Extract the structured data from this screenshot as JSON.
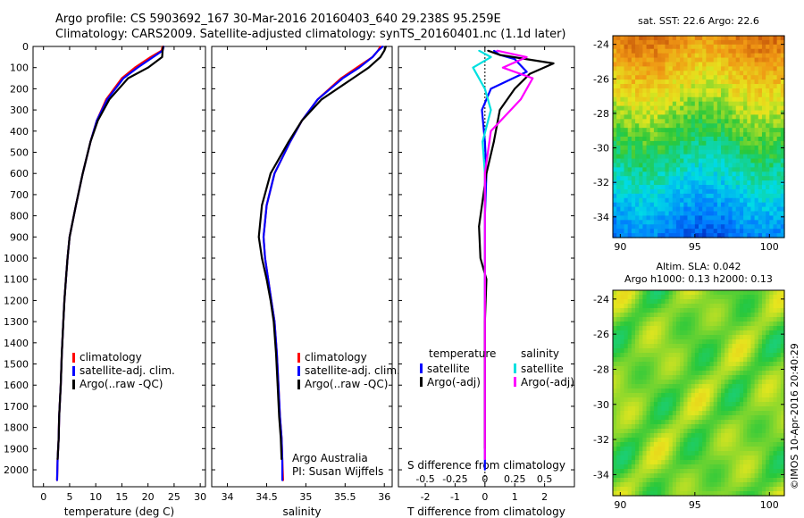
{
  "header": {
    "line1": "Argo profile: CS 5903692_167 30-Mar-2016 20160403_640 29.238S 95.259E",
    "line2": "Climatology: CARS2009. Satellite-adjusted climatology: synTS_20160401.nc (1.1d later)"
  },
  "footer_credit": "©IMOS 10-Apr-2016 20:40:29",
  "chart_data": [
    {
      "type": "line",
      "panel": "temperature",
      "xlabel": "temperature (deg C)",
      "ylabel": "",
      "xlim": [
        -2,
        31
      ],
      "ylim": [
        2080,
        0
      ],
      "xticks": [
        0,
        5,
        10,
        15,
        20,
        25,
        30
      ],
      "yticks": [
        0,
        100,
        200,
        300,
        400,
        500,
        600,
        700,
        800,
        900,
        1000,
        1100,
        1200,
        1300,
        1400,
        1500,
        1600,
        1700,
        1800,
        1900,
        2000
      ],
      "legend": [
        "climatology",
        "satellite-adj. clim.",
        "Argo(..raw -QC)"
      ],
      "legend_colors": [
        "#ff0000",
        "#0000ff",
        "#000000"
      ],
      "series": [
        {
          "name": "climatology",
          "color": "#ff0000",
          "x": [
            22.8,
            22.6,
            20.5,
            17.5,
            15.0,
            12.0,
            10.2,
            9.0,
            7.5,
            6.2,
            5.0,
            4.6,
            4.3,
            4.0,
            3.8,
            3.5,
            3.3,
            3.0,
            2.9,
            2.7,
            2.6
          ],
          "y": [
            0,
            20,
            50,
            100,
            150,
            250,
            350,
            450,
            600,
            750,
            900,
            1000,
            1100,
            1200,
            1300,
            1450,
            1600,
            1750,
            1850,
            1950,
            2050
          ]
        },
        {
          "name": "satellite-adj. clim.",
          "color": "#0000ff",
          "x": [
            23.0,
            22.8,
            21.0,
            18.0,
            15.3,
            12.2,
            10.2,
            9.0,
            7.5,
            6.2,
            5.0,
            4.6,
            4.3,
            4.0,
            3.8,
            3.5,
            3.3,
            3.0,
            2.9,
            2.7,
            2.6
          ],
          "y": [
            0,
            20,
            50,
            100,
            150,
            250,
            350,
            450,
            600,
            750,
            900,
            1000,
            1100,
            1200,
            1300,
            1450,
            1600,
            1750,
            1850,
            1950,
            2050
          ]
        },
        {
          "name": "Argo(..raw -QC)",
          "color": "#000000",
          "x": [
            22.9,
            22.8,
            22.7,
            20.0,
            16.2,
            12.6,
            10.4,
            9.0,
            7.5,
            6.2,
            5.0,
            4.6,
            4.3,
            4.0,
            3.8,
            3.5,
            3.3,
            3.0,
            2.9,
            2.7
          ],
          "y": [
            0,
            20,
            50,
            100,
            150,
            250,
            350,
            450,
            600,
            750,
            900,
            1000,
            1100,
            1200,
            1300,
            1450,
            1600,
            1750,
            1850,
            1950
          ]
        }
      ]
    },
    {
      "type": "line",
      "panel": "salinity",
      "xlabel": "salinity",
      "ylabel": "",
      "xlim": [
        33.8,
        36.1
      ],
      "ylim": [
        2080,
        0
      ],
      "xticks": [
        34,
        34.5,
        35,
        35.5,
        36
      ],
      "legend": [
        "climatology",
        "satellite-adj. clim.",
        "Argo(..raw -QC)"
      ],
      "legend_colors": [
        "#ff0000",
        "#0000ff",
        "#000000"
      ],
      "annotation": [
        "Argo Australia",
        "PI: Susan Wijffels"
      ],
      "series": [
        {
          "name": "climatology",
          "color": "#ff0000",
          "x": [
            35.95,
            35.92,
            35.85,
            35.65,
            35.45,
            35.15,
            34.95,
            34.8,
            34.6,
            34.5,
            34.46,
            34.48,
            34.52,
            34.56,
            34.6,
            34.63,
            34.65,
            34.67,
            34.69,
            34.7,
            34.71
          ],
          "y": [
            0,
            20,
            50,
            100,
            150,
            250,
            350,
            450,
            600,
            750,
            900,
            1000,
            1100,
            1200,
            1300,
            1450,
            1600,
            1750,
            1850,
            1950,
            2050
          ]
        },
        {
          "name": "satellite-adj. clim.",
          "color": "#0000ff",
          "x": [
            35.98,
            35.92,
            35.85,
            35.68,
            35.47,
            35.15,
            34.95,
            34.8,
            34.6,
            34.5,
            34.46,
            34.48,
            34.52,
            34.56,
            34.6,
            34.63,
            34.65,
            34.67,
            34.69,
            34.7,
            34.7
          ],
          "y": [
            0,
            20,
            50,
            100,
            150,
            250,
            350,
            450,
            600,
            750,
            900,
            1000,
            1100,
            1200,
            1300,
            1450,
            1600,
            1750,
            1850,
            1950,
            2050
          ]
        },
        {
          "name": "Argo(..raw -QC)",
          "color": "#000000",
          "x": [
            36.02,
            36.0,
            35.95,
            35.8,
            35.6,
            35.2,
            34.95,
            34.78,
            34.55,
            34.44,
            34.4,
            34.44,
            34.5,
            34.55,
            34.59,
            34.62,
            34.64,
            34.66,
            34.68,
            34.69
          ],
          "y": [
            0,
            20,
            50,
            100,
            150,
            250,
            350,
            450,
            600,
            750,
            900,
            1000,
            1100,
            1200,
            1300,
            1450,
            1600,
            1750,
            1850,
            1950
          ]
        }
      ]
    },
    {
      "type": "line",
      "panel": "difference",
      "xlabel": "T difference from climatology",
      "xlabel_top": "S difference from climatology",
      "xlim": [
        -2.9,
        3.0
      ],
      "ylim": [
        2080,
        0
      ],
      "xticks": [
        -2,
        -1,
        0,
        1,
        2
      ],
      "xticks_top": [
        -0.5,
        -0.25,
        0,
        0.25,
        0.5
      ],
      "legend_groups": [
        {
          "title": "temperature",
          "items": [
            "satellite",
            "Argo(-adj)"
          ],
          "colors": [
            "#0000ff",
            "#000000"
          ]
        },
        {
          "title": "salinity",
          "items": [
            "satellite",
            "Argo(-adj)"
          ],
          "colors": [
            "#00e0e0",
            "#ff00ff"
          ]
        }
      ],
      "series": [
        {
          "name": "satellite",
          "group": "temperature",
          "color": "#0000ff",
          "x": [
            0.3,
            0.5,
            1.0,
            1.4,
            0.2,
            -0.1,
            0.0,
            0.05,
            0.0,
            0.0,
            0.0,
            0.0,
            0.0,
            0.0,
            0.0
          ],
          "y": [
            20,
            40,
            60,
            120,
            200,
            300,
            450,
            600,
            800,
            1000,
            1200,
            1400,
            1600,
            1800,
            2000
          ]
        },
        {
          "name": "Argo(-adj)",
          "group": "temperature",
          "color": "#000000",
          "x": [
            0.1,
            0.5,
            2.3,
            1.5,
            1.0,
            0.5,
            0.3,
            0.05,
            -0.2,
            -0.15,
            0.05,
            0.0,
            0.0,
            0.0,
            0.0
          ],
          "y": [
            20,
            40,
            80,
            130,
            200,
            300,
            450,
            600,
            850,
            1000,
            1100,
            1300,
            1500,
            1700,
            1900
          ]
        },
        {
          "name": "satellite",
          "group": "salinity",
          "color": "#00e0e0",
          "x": [
            -0.05,
            0.05,
            -0.1,
            0.0,
            0.05,
            -0.02,
            0.0,
            0.0,
            0.0,
            0.0
          ],
          "y": [
            20,
            50,
            100,
            200,
            300,
            450,
            600,
            800,
            1000,
            1200
          ]
        },
        {
          "name": "Argo(-adj)",
          "group": "salinity",
          "color": "#ff00ff",
          "x": [
            0.1,
            0.35,
            0.15,
            0.4,
            0.3,
            0.05,
            0.0,
            0.0,
            0.0,
            0.0,
            0.0,
            0.0
          ],
          "y": [
            20,
            50,
            100,
            150,
            250,
            400,
            600,
            800,
            1000,
            1200,
            1500,
            1950
          ]
        }
      ]
    },
    {
      "type": "heatmap",
      "panel": "sst-map",
      "title": "sat. SST: 22.6 Argo: 22.6",
      "xlim": [
        89.5,
        101
      ],
      "ylim": [
        -35.2,
        -23.5
      ],
      "xticks": [
        90,
        95,
        100
      ],
      "yticks": [
        -24,
        -26,
        -28,
        -30,
        -32,
        -34
      ]
    },
    {
      "type": "heatmap",
      "panel": "sla-map",
      "title": [
        "Altim. SLA: 0.042",
        "Argo h1000: 0.13 h2000: 0.13"
      ],
      "xlim": [
        89.5,
        101
      ],
      "ylim": [
        -35.2,
        -23.5
      ],
      "xticks": [
        90,
        95,
        100
      ],
      "yticks": [
        -24,
        -26,
        -28,
        -30,
        -32,
        -34
      ]
    }
  ]
}
